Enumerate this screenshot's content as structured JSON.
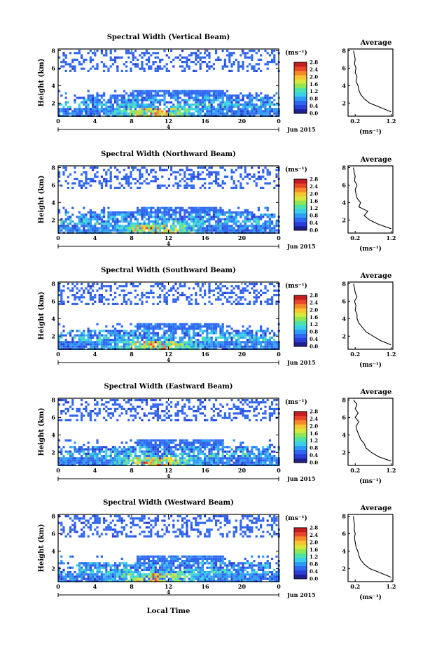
{
  "figure": {
    "date_label": "Jun 2015",
    "day_label": "4",
    "colorbar_unit": "(ms⁻¹)",
    "colorbar_ticks": [
      "0.0",
      "0.4",
      "0.8",
      "1.2",
      "1.6",
      "2.0",
      "2.4",
      "2.8"
    ],
    "colorbar_colors": [
      "#1f1f8f",
      "#2b3fd8",
      "#2f66f0",
      "#2d9cf5",
      "#3ad0e8",
      "#4de3a8",
      "#8fe657",
      "#d5e83b",
      "#f7c531",
      "#f58a28",
      "#e8462a",
      "#c51d20"
    ],
    "xlabel": "Local Time",
    "average_title": "Average",
    "average_xlabel": "(ms⁻¹)",
    "average_xticks": [
      "0.2",
      "1.2"
    ],
    "heights_km": [
      8,
      6,
      4,
      2
    ],
    "time_ticks": [
      "0",
      "4",
      "8",
      "12",
      "16",
      "20",
      "0"
    ]
  },
  "chart_data": [
    {
      "type": "heatmap",
      "title": "Spectral Width (Vertical Beam)",
      "ylabel": "Height (km)",
      "x_range_local_time_h": [
        0,
        24
      ],
      "y_range_km": [
        0.5,
        8.2
      ],
      "color_range_ms": [
        0,
        2.8
      ],
      "average_profile": {
        "height_km": [
          1.0,
          1.5,
          2.0,
          2.5,
          3.0,
          3.5,
          4.0,
          4.5,
          5.0,
          5.5,
          6.0,
          6.5,
          7.0,
          7.5,
          8.0
        ],
        "value_ms": [
          1.2,
          0.9,
          0.6,
          0.45,
          0.35,
          0.3,
          0.28,
          0.22,
          0.25,
          0.2,
          0.22,
          0.18,
          0.2,
          0.18,
          0.15
        ]
      }
    },
    {
      "type": "heatmap",
      "title": "Spectral Width (Northward Beam)",
      "ylabel": "Height (km)",
      "x_range_local_time_h": [
        0,
        24
      ],
      "y_range_km": [
        0.5,
        8.2
      ],
      "color_range_ms": [
        0,
        2.8
      ],
      "average_profile": {
        "height_km": [
          1.0,
          1.5,
          2.0,
          2.5,
          3.0,
          3.5,
          4.0,
          4.5,
          5.0,
          5.5,
          6.0,
          6.5,
          7.0,
          7.5,
          8.0
        ],
        "value_ms": [
          1.2,
          0.85,
          0.6,
          0.45,
          0.55,
          0.3,
          0.35,
          0.25,
          0.22,
          0.2,
          0.25,
          0.18,
          0.2,
          0.17,
          0.15
        ]
      }
    },
    {
      "type": "heatmap",
      "title": "Spectral Width (Southward Beam)",
      "ylabel": "Height (km)",
      "x_range_local_time_h": [
        0,
        24
      ],
      "y_range_km": [
        0.5,
        8.2
      ],
      "color_range_ms": [
        0,
        2.8
      ],
      "average_profile": {
        "height_km": [
          1.0,
          1.5,
          2.0,
          2.5,
          3.0,
          3.5,
          4.0,
          4.5,
          5.0,
          5.5,
          6.0,
          6.5,
          7.0,
          7.5,
          8.0
        ],
        "value_ms": [
          1.2,
          0.9,
          0.7,
          0.5,
          0.4,
          0.3,
          0.25,
          0.25,
          0.2,
          0.22,
          0.18,
          0.25,
          0.2,
          0.18,
          0.15
        ]
      }
    },
    {
      "type": "heatmap",
      "title": "Spectral Width (Eastward Beam)",
      "ylabel": "Height (km)",
      "x_range_local_time_h": [
        0,
        24
      ],
      "y_range_km": [
        0.5,
        8.2
      ],
      "color_range_ms": [
        0,
        2.8
      ],
      "average_profile": {
        "height_km": [
          1.0,
          1.5,
          2.0,
          2.5,
          3.0,
          3.5,
          4.0,
          4.5,
          5.0,
          5.5,
          6.0,
          6.5,
          7.0,
          7.5,
          8.0
        ],
        "value_ms": [
          1.2,
          0.85,
          0.65,
          0.5,
          0.45,
          0.35,
          0.3,
          0.25,
          0.22,
          0.3,
          0.2,
          0.28,
          0.2,
          0.25,
          0.15
        ]
      }
    },
    {
      "type": "heatmap",
      "title": "Spectral Width (Westward Beam)",
      "ylabel": "Height (km)",
      "x_range_local_time_h": [
        0,
        24
      ],
      "y_range_km": [
        0.5,
        8.2
      ],
      "color_range_ms": [
        0,
        2.8
      ],
      "average_profile": {
        "height_km": [
          1.0,
          1.5,
          2.0,
          2.5,
          3.0,
          3.5,
          4.0,
          4.5,
          5.0,
          5.5,
          6.0,
          6.5,
          7.0,
          7.5,
          8.0
        ],
        "value_ms": [
          1.2,
          0.9,
          0.6,
          0.45,
          0.35,
          0.3,
          0.27,
          0.22,
          0.2,
          0.18,
          0.2,
          0.17,
          0.18,
          0.16,
          0.15
        ]
      }
    }
  ]
}
